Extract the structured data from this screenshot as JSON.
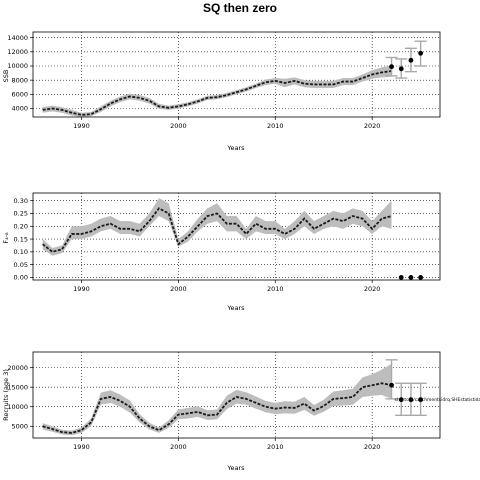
{
  "title": "SQ then zero",
  "chart_data": [
    {
      "type": "line",
      "ylabel": "SSB",
      "xlabel": "Years",
      "xlim": [
        1985,
        2027
      ],
      "ylim": [
        2800,
        14800
      ],
      "xticks": [
        1990,
        2000,
        2010,
        2020
      ],
      "yticks": [
        4000,
        6000,
        8000,
        10000,
        12000,
        14000
      ],
      "grid": "dotted",
      "series": [
        {
          "style": "median-with-band",
          "x": [
            1986,
            1987,
            1988,
            1989,
            1990,
            1991,
            1992,
            1993,
            1994,
            1995,
            1996,
            1997,
            1998,
            1999,
            2000,
            2001,
            2002,
            2003,
            2004,
            2005,
            2006,
            2007,
            2008,
            2009,
            2010,
            2011,
            2012,
            2013,
            2014,
            2015,
            2016,
            2017,
            2018,
            2019,
            2020,
            2021,
            2022
          ],
          "y": [
            3800,
            4000,
            3800,
            3400,
            3100,
            3200,
            3900,
            4700,
            5300,
            5700,
            5500,
            5100,
            4300,
            4100,
            4300,
            4600,
            5000,
            5500,
            5600,
            5900,
            6300,
            6700,
            7200,
            7700,
            7900,
            7600,
            7900,
            7500,
            7400,
            7400,
            7400,
            7800,
            7800,
            8300,
            8800,
            9100,
            9300
          ],
          "lower": [
            3400,
            3600,
            3400,
            3000,
            2800,
            2900,
            3500,
            4300,
            4900,
            5300,
            5100,
            4700,
            3950,
            3800,
            4000,
            4300,
            4700,
            5200,
            5300,
            5600,
            6000,
            6400,
            6900,
            7300,
            7500,
            7000,
            7400,
            7000,
            6900,
            6900,
            6900,
            7300,
            7300,
            7800,
            8200,
            8400,
            8500
          ],
          "upper": [
            4200,
            4400,
            4200,
            3800,
            3400,
            3500,
            4300,
            5100,
            5700,
            6100,
            5900,
            5500,
            4650,
            4400,
            4600,
            4900,
            5300,
            5800,
            5900,
            6200,
            6600,
            7000,
            7500,
            8100,
            8300,
            8200,
            8400,
            8000,
            7900,
            7900,
            7900,
            8300,
            8300,
            8800,
            9400,
            9800,
            10100
          ]
        },
        {
          "style": "points-with-errorbars",
          "x": [
            2022,
            2023,
            2024,
            2025
          ],
          "y": [
            9900,
            9600,
            10800,
            11800
          ],
          "lower": [
            8600,
            8300,
            9200,
            10000
          ],
          "upper": [
            11200,
            11000,
            12500,
            13500
          ]
        }
      ]
    },
    {
      "type": "line",
      "ylabel": "F₄-₈",
      "xlabel": "Years",
      "xlim": [
        1985,
        2027
      ],
      "ylim": [
        -0.01,
        0.33
      ],
      "xticks": [
        1990,
        2000,
        2010,
        2020
      ],
      "yticks": [
        0.0,
        0.05,
        0.1,
        0.15,
        0.2,
        0.25,
        0.3
      ],
      "grid": "dotted",
      "series": [
        {
          "style": "median-with-band",
          "x": [
            1986,
            1987,
            1988,
            1989,
            1990,
            1991,
            1992,
            1993,
            1994,
            1995,
            1996,
            1997,
            1998,
            1999,
            2000,
            2001,
            2002,
            2003,
            2004,
            2005,
            2006,
            2007,
            2008,
            2009,
            2010,
            2011,
            2012,
            2013,
            2014,
            2015,
            2016,
            2017,
            2018,
            2019,
            2020,
            2021,
            2022
          ],
          "y": [
            0.13,
            0.1,
            0.11,
            0.17,
            0.17,
            0.18,
            0.2,
            0.21,
            0.19,
            0.19,
            0.18,
            0.22,
            0.27,
            0.25,
            0.13,
            0.16,
            0.2,
            0.24,
            0.25,
            0.21,
            0.21,
            0.17,
            0.21,
            0.19,
            0.19,
            0.17,
            0.19,
            0.23,
            0.19,
            0.21,
            0.23,
            0.22,
            0.24,
            0.23,
            0.19,
            0.23,
            0.24
          ],
          "lower": [
            0.11,
            0.085,
            0.095,
            0.15,
            0.15,
            0.16,
            0.18,
            0.19,
            0.17,
            0.17,
            0.16,
            0.2,
            0.24,
            0.22,
            0.12,
            0.14,
            0.18,
            0.21,
            0.22,
            0.18,
            0.18,
            0.15,
            0.18,
            0.17,
            0.17,
            0.15,
            0.17,
            0.2,
            0.17,
            0.19,
            0.2,
            0.19,
            0.21,
            0.2,
            0.17,
            0.2,
            0.19
          ],
          "upper": [
            0.15,
            0.115,
            0.125,
            0.2,
            0.2,
            0.21,
            0.23,
            0.24,
            0.22,
            0.22,
            0.21,
            0.25,
            0.31,
            0.29,
            0.15,
            0.18,
            0.23,
            0.27,
            0.29,
            0.24,
            0.24,
            0.19,
            0.24,
            0.22,
            0.22,
            0.19,
            0.22,
            0.26,
            0.22,
            0.24,
            0.26,
            0.25,
            0.27,
            0.26,
            0.22,
            0.26,
            0.3
          ]
        },
        {
          "style": "points",
          "x": [
            2023,
            2024,
            2025
          ],
          "y": [
            0.0,
            0.0,
            0.0
          ]
        }
      ]
    },
    {
      "type": "line",
      "ylabel": "Recruits (age 3)",
      "xlabel": "Years",
      "xlim": [
        1985,
        2027
      ],
      "ylim": [
        2000,
        24000
      ],
      "xticks": [
        1990,
        2000,
        2010,
        2020
      ],
      "yticks": [
        5000,
        10000,
        15000,
        20000
      ],
      "grid": "dotted",
      "annotation": "shortcut/catchmentsidrq.SHEstatistidac0.8_t2_r19325_p8.1ca",
      "series": [
        {
          "style": "median-with-band",
          "x": [
            1986,
            1987,
            1988,
            1989,
            1990,
            1991,
            1992,
            1993,
            1994,
            1995,
            1996,
            1997,
            1998,
            1999,
            2000,
            2001,
            2002,
            2003,
            2004,
            2005,
            2006,
            2007,
            2008,
            2009,
            2010,
            2011,
            2012,
            2013,
            2014,
            2015,
            2016,
            2017,
            2018,
            2019,
            2020,
            2021,
            2022
          ],
          "y": [
            5000,
            4300,
            3500,
            3300,
            4000,
            6000,
            12000,
            12500,
            11500,
            10000,
            7000,
            5000,
            4000,
            5500,
            8000,
            8300,
            8700,
            7800,
            8000,
            11000,
            12500,
            12000,
            11000,
            10000,
            9500,
            9800,
            9700,
            10800,
            9000,
            10200,
            12000,
            12200,
            12500,
            15000,
            15500,
            16000,
            15500
          ],
          "lower": [
            4200,
            3600,
            2900,
            2700,
            3300,
            5000,
            10500,
            11000,
            10000,
            8500,
            6000,
            4200,
            3300,
            4600,
            6800,
            7000,
            7400,
            6600,
            6800,
            9400,
            10800,
            10500,
            9500,
            8600,
            8100,
            8300,
            8200,
            9200,
            7700,
            8700,
            10200,
            10300,
            10500,
            12500,
            12800,
            13000,
            12000
          ],
          "upper": [
            5800,
            5000,
            4100,
            3900,
            4700,
            7000,
            13600,
            14200,
            13100,
            11600,
            8100,
            5900,
            4700,
            6500,
            9300,
            9700,
            10100,
            9100,
            9300,
            12800,
            14300,
            13700,
            12600,
            11500,
            11000,
            11400,
            11300,
            12500,
            10400,
            11800,
            13900,
            14200,
            14600,
            17500,
            18300,
            19500,
            21000
          ]
        },
        {
          "style": "points-with-errorbars",
          "x": [
            2022,
            2023,
            2024,
            2025
          ],
          "y": [
            15500,
            11800,
            11800,
            11800
          ],
          "lower": [
            12000,
            7800,
            7800,
            7800
          ],
          "upper": [
            22000,
            16000,
            16000,
            16000
          ]
        }
      ]
    }
  ]
}
